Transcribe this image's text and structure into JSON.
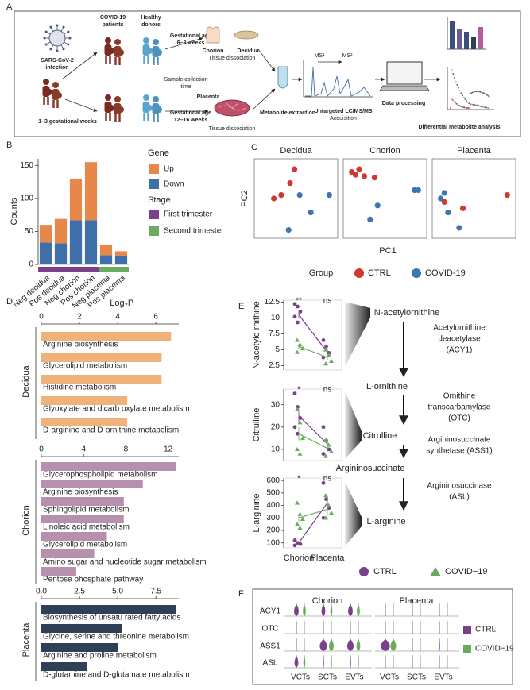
{
  "panel_labels": [
    "A",
    "B",
    "C",
    "D",
    "E",
    "F"
  ],
  "workflow": {
    "virus": [
      "SARS-CoV-2",
      "infection"
    ],
    "patients": [
      "COVID-19",
      "patients"
    ],
    "donors": [
      "Healthy",
      "donors"
    ],
    "early_age": [
      "Gestational age",
      "6–8 weeks"
    ],
    "collection": [
      "Sample collection",
      "time"
    ],
    "late_age": [
      "Gestational age",
      "12–16 weeks"
    ],
    "infection_time": "1–3 gestational weeks",
    "chorion": "Chorion",
    "decidua": "Decidua",
    "dissociation_early": "Tissue dissociation",
    "placenta": "Placenta",
    "dissociation_late": "Tissue dissociation",
    "extraction": "Metabolite extraction",
    "ms1": "MS¹",
    "ms2": "MS²",
    "lcms": [
      "Untargeted LC/MS/MS",
      "Acquisition"
    ],
    "processing": "Data processing",
    "analysis": "Differential metabolite analysis"
  },
  "chart_data": [
    {
      "type": "stacked_bar",
      "ylabel": "Counts",
      "categories": [
        "Neg decidua",
        "Pos decidua",
        "Neg chorion",
        "Pos chorion",
        "Neg placenta",
        "Pos placenta"
      ],
      "legend_title": "Gene",
      "series": [
        {
          "name": "Up",
          "color": "#e8874a",
          "values": [
            27,
            37,
            63,
            88,
            15,
            7
          ]
        },
        {
          "name": "Down",
          "color": "#3f6fa8",
          "values": [
            33,
            32,
            67,
            67,
            14,
            13
          ]
        }
      ],
      "ylim": [
        0,
        160
      ],
      "yticks": [
        0,
        50,
        100,
        150
      ],
      "stage": {
        "title": "Stage",
        "legend": [
          {
            "name": "First trimester",
            "color": "#7b3f8c"
          },
          {
            "name": "Second trimester",
            "color": "#6aab5e"
          }
        ],
        "categories": [
          "First trimester",
          "First trimester",
          "First trimester",
          "First trimester",
          "Second trimester",
          "Second trimester"
        ]
      }
    },
    {
      "type": "scatter",
      "xlabel": "PC1",
      "ylabel": "PC2",
      "legend_title": "Group",
      "groups": [
        {
          "name": "CTRL",
          "color": "#d0392e"
        },
        {
          "name": "COVID-19",
          "color": "#3e74b2"
        }
      ],
      "xlim": [
        0,
        1
      ],
      "ylim": [
        0,
        1
      ],
      "facets": [
        {
          "title": "Decidua",
          "series": [
            {
              "x": [
                0.48,
                0.42,
                0.3,
                0.2
              ],
              "y": [
                0.92,
                0.72,
                0.55,
                0.5
              ]
            },
            {
              "x": [
                0.55,
                0.95,
                0.7,
                0.4
              ],
              "y": [
                0.55,
                0.55,
                0.3,
                0.05
              ]
            }
          ]
        },
        {
          "title": "Chorion",
          "series": [
            {
              "x": [
                0.05,
                0.1,
                0.15,
                0.22,
                0.36
              ],
              "y": [
                0.88,
                0.84,
                0.92,
                0.82,
                0.8
              ]
            },
            {
              "x": [
                0.9,
                0.95,
                0.4,
                0.3
              ],
              "y": [
                0.62,
                0.62,
                0.4,
                0.2
              ]
            }
          ]
        },
        {
          "title": "Placenta",
          "series": [
            {
              "x": [
                0.95,
                0.35,
                0.1
              ],
              "y": [
                0.55,
                0.36,
                0.45
              ]
            },
            {
              "x": [
                0.05,
                0.15,
                0.3,
                0.1
              ],
              "y": [
                0.5,
                0.3,
                0.08,
                0.58
              ]
            }
          ]
        }
      ]
    },
    {
      "type": "barh",
      "xlabel": "−Log₂P",
      "facets": [
        {
          "title": "Decidua",
          "color": "#f0b27a",
          "xlim": [
            0,
            7.2
          ],
          "xticks": [
            0,
            2,
            4,
            6
          ],
          "categories": [
            "Arginine biosynthesis",
            "Glycerolipid metabolism",
            "Histidine metabolism",
            "Glyoxylate and dicarb oxylate metabolism",
            "D-arginine and D-ornithine metabolism"
          ],
          "values": [
            6.8,
            6.3,
            6.3,
            4.5,
            4.5
          ]
        },
        {
          "title": "Chorion",
          "color": "#b790ad",
          "xlim": [
            0,
            13
          ],
          "xticks": [
            0,
            4,
            8,
            12
          ],
          "categories": [
            "Glycerophospholipid metabolism",
            "Arginine biosynthesis",
            "Sphingolipid metabolism",
            "Linoleic acid metabolism",
            "Glycerolipid metabolism",
            "Amino sugar and nucleotide sugar metabolism",
            "Pentose phosphate pathway"
          ],
          "values": [
            12.7,
            9.6,
            7.8,
            7.8,
            6.2,
            5.0,
            3.3
          ]
        },
        {
          "title": "Placenta",
          "color": "#2e3f56",
          "xlim": [
            0,
            9
          ],
          "xticks": [
            {
              "value": 0,
              "label": "0.0"
            },
            {
              "value": 2.5,
              "label": "2.5"
            },
            {
              "value": 5,
              "label": "5.0"
            },
            {
              "value": 7.5,
              "label": "7.5"
            }
          ],
          "categories": [
            "Biosynthesis of unsatu rated fatty acids",
            "Glycine, serine and threonine metabolism",
            "Arginine and proline metabolism",
            "D-glutamine and D-glutamate metabolism"
          ],
          "values": [
            8.8,
            5.3,
            5.0,
            3.0
          ]
        }
      ]
    },
    {
      "type": "dotline",
      "categories": [
        "Chorion",
        "Placenta"
      ],
      "groups": [
        {
          "name": "CTRL",
          "color": "#7b3f8c",
          "marker": "circle"
        },
        {
          "name": "COVID−19",
          "color": "#6aab5e",
          "marker": "triangle"
        }
      ],
      "facets": [
        {
          "ylabel": "N-acetylo rnithine",
          "ylim": [
            1.8,
            12.8
          ],
          "yticks": [
            2.5,
            5.0,
            7.5,
            10.0,
            12.5
          ],
          "significance": [
            "**",
            "ns"
          ],
          "series": [
            {
              "means": [
                10.5,
                4.6
              ],
              "errors": [
                0.6,
                0.5
              ],
              "points": [
                [
                  12.2,
                  11.8,
                  11.0,
                  10.2,
                  9.3
                ],
                [
                  6.5,
                  5.5,
                  4.5,
                  3.8
                ]
              ]
            },
            {
              "means": [
                5.5,
                3.8
              ],
              "errors": [
                0.4,
                0.4
              ],
              "points": [
                [
                  6.5,
                  5.8,
                  5.2,
                  4.6
                ],
                [
                  5.0,
                  4.2,
                  3.2,
                  2.8
                ]
              ]
            }
          ]
        },
        {
          "ylabel": "Citrulline",
          "ylim": [
            5,
            37
          ],
          "yticks": [
            10,
            20,
            30
          ],
          "significance": [
            "*",
            "ns"
          ],
          "series": [
            {
              "means": [
                25,
                12.5
              ],
              "errors": [
                3,
                2
              ],
              "points": [
                [
                  35,
                  29,
                  24,
                  20,
                  17
                ],
                [
                  20,
                  14,
                  10,
                  8
                ]
              ]
            },
            {
              "means": [
                17,
                10.5
              ],
              "errors": [
                3,
                1.5
              ],
              "points": [
                [
                  28,
                  22,
                  15,
                  10,
                  8
                ],
                [
                  14,
                  12,
                  9,
                  7
                ]
              ]
            }
          ]
        },
        {
          "ylabel": "L-arginine",
          "ylim": [
            60,
            620
          ],
          "yticks": [
            100,
            200,
            300,
            400,
            500,
            600
          ],
          "significance": [
            "*",
            "ns"
          ],
          "series": [
            {
              "means": [
                100,
                420
              ],
              "errors": [
                10,
                50
              ],
              "points": [
                [
                  120,
                  100,
                  90,
                  80
                ],
                [
                  580,
                  450,
                  380,
                  300
                ]
              ]
            },
            {
              "means": [
                300,
                370
              ],
              "errors": [
                30,
                40
              ],
              "points": [
                [
                  420,
                  330,
                  290,
                  250,
                  220
                ],
                [
                  480,
                  400,
                  340,
                  300
                ]
              ]
            }
          ]
        }
      ]
    },
    {
      "type": "violin",
      "facet_titles": [
        "Chorion",
        "Placenta"
      ],
      "genes": [
        "ACY1",
        "OTC",
        "ASS1",
        "ASL"
      ],
      "cell_types": [
        "VCTs",
        "SCTs",
        "EVTs"
      ],
      "groups": [
        {
          "name": "CTRL",
          "color": "#7b3f8c"
        },
        {
          "name": "COVID−19",
          "color": "#6aab5e"
        }
      ],
      "widths": [
        [
          [
            0.5,
            0.4,
            0.5,
            0,
            0,
            0
          ],
          [
            0.3,
            0.2,
            0.3,
            0,
            0,
            0
          ]
        ],
        [
          [
            0,
            0,
            0,
            0,
            0,
            0
          ],
          [
            0,
            0,
            0,
            0,
            0,
            0
          ]
        ],
        [
          [
            0,
            0.8,
            0.7,
            1.0,
            0,
            0.1
          ],
          [
            0,
            0.5,
            0.4,
            0.6,
            0,
            0
          ]
        ],
        [
          [
            0.4,
            0.1,
            0.1,
            0,
            0,
            0
          ],
          [
            0.2,
            0.1,
            0.1,
            0,
            0,
            0
          ]
        ]
      ]
    }
  ],
  "pathway": {
    "nodes": [
      "N-acetylornithine",
      "L-ornithine",
      "Citrulline",
      "Argininosuccinate",
      "L-arginine"
    ],
    "enzymes": [
      [
        "Acetylornithine",
        "deacetylase",
        "(ACY1)"
      ],
      [
        "Ornithine",
        "transcarbamylase",
        "(OTC)"
      ],
      [
        "Argininosuccinate",
        "synthetase (ASS1)"
      ],
      [
        "Argininosuccinase",
        "(ASL)"
      ]
    ]
  }
}
